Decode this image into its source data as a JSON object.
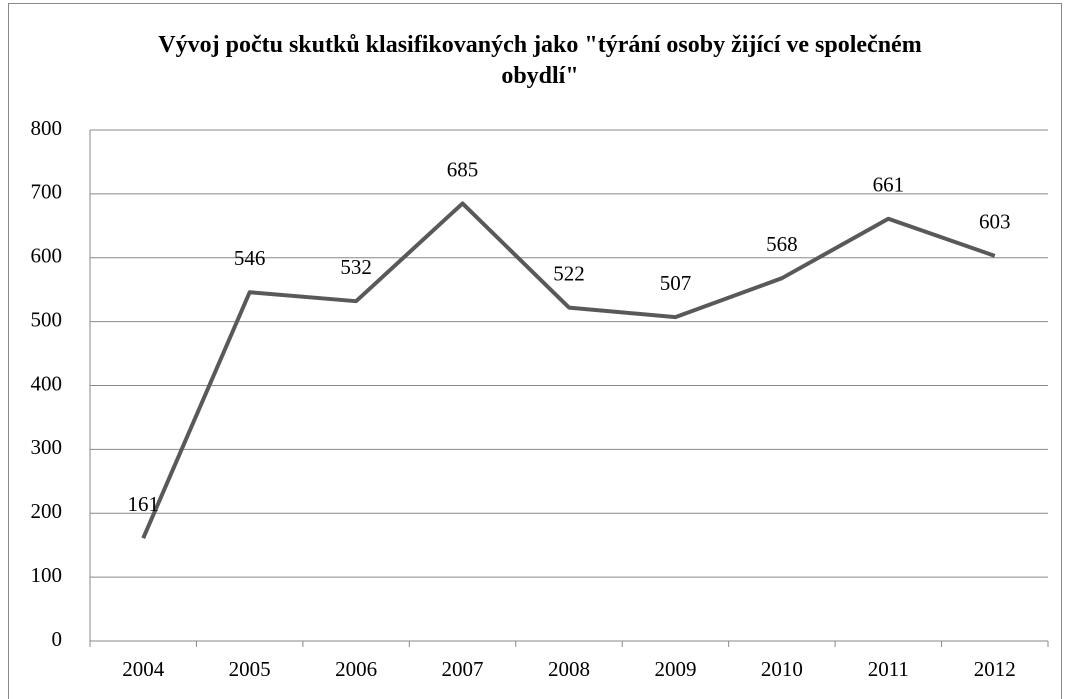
{
  "chart_data": {
    "type": "line",
    "title": "Vývoj počtu skutků klasifikovaných jako \"týrání osoby žijící ve společném obydlí\"",
    "categories": [
      "2004",
      "2005",
      "2006",
      "2007",
      "2008",
      "2009",
      "2010",
      "2011",
      "2012"
    ],
    "values": [
      161,
      546,
      532,
      685,
      522,
      507,
      568,
      661,
      603
    ],
    "color": "#595959",
    "ylim": [
      0,
      800
    ],
    "yticks": [
      0,
      100,
      200,
      300,
      400,
      500,
      600,
      700,
      800
    ],
    "grid": true
  }
}
